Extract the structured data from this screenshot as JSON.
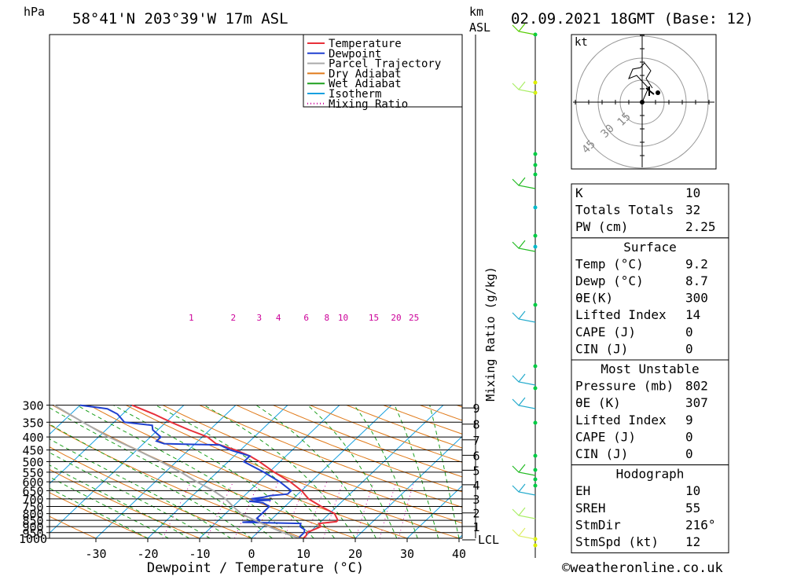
{
  "header": {
    "pressure_unit": "hPa",
    "location": "58°41'N  203°39'W  17m  ASL",
    "km_unit": "km",
    "asl_unit": "ASL",
    "datetime": "02.09.2021  18GMT  (Base: 12)"
  },
  "legend": [
    "Temperature",
    "Dewpoint",
    "Parcel Trajectory",
    "Dry Adiabat",
    "Wet Adiabat",
    "Isotherm",
    "Mixing Ratio"
  ],
  "mixing_ratio_label": "Mixing Ratio (g/kg)",
  "lcl_label": "LCL",
  "copyright": "©weatheronline.co.uk",
  "hodograph": {
    "unit": "kt",
    "rings": [
      "15",
      "30",
      "45"
    ]
  },
  "table1": [
    {
      "label": "K",
      "value": "10"
    },
    {
      "label": "Totals Totals",
      "value": "32"
    },
    {
      "label": "PW (cm)",
      "value": "2.25"
    }
  ],
  "surface": {
    "title": "Surface",
    "rows": [
      {
        "label": "Temp (°C)",
        "value": "9.2"
      },
      {
        "label": "Dewp (°C)",
        "value": "8.7"
      },
      {
        "label": "θE(K)",
        "value": "300"
      },
      {
        "label": "Lifted Index",
        "value": "14"
      },
      {
        "label": "CAPE (J)",
        "value": "0"
      },
      {
        "label": "CIN (J)",
        "value": "0"
      }
    ]
  },
  "most_unstable": {
    "title": "Most Unstable",
    "rows": [
      {
        "label": "Pressure (mb)",
        "value": "802"
      },
      {
        "label": "θE (K)",
        "value": "307"
      },
      {
        "label": "Lifted Index",
        "value": "9"
      },
      {
        "label": "CAPE (J)",
        "value": "0"
      },
      {
        "label": "CIN (J)",
        "value": "0"
      }
    ]
  },
  "hodograph_table": {
    "title": "Hodograph",
    "rows": [
      {
        "label": "EH",
        "value": "10"
      },
      {
        "label": "SREH",
        "value": "55"
      },
      {
        "label": "StmDir",
        "value": "216°"
      },
      {
        "label": "StmSpd (kt)",
        "value": "12"
      }
    ]
  },
  "colors": {
    "temperature": "#e8303a",
    "dewpoint": "#2040d0",
    "parcel": "#aaaaaa",
    "dry_adiabat": "#e07a1a",
    "wet_adiabat": "#1fa01f",
    "isotherm": "#18a0e0",
    "mixing_ratio": "#cc0099"
  },
  "chart_data": {
    "type": "line",
    "xlabel": "Dewpoint / Temperature (°C)",
    "ylabel": "hPa",
    "x_ticks": [
      -30,
      -20,
      -10,
      0,
      10,
      20,
      30,
      40
    ],
    "pressure_levels": [
      300,
      350,
      400,
      450,
      500,
      550,
      600,
      650,
      700,
      750,
      800,
      850,
      900,
      950,
      1000
    ],
    "km_ticks": [
      1,
      2,
      3,
      4,
      5,
      6,
      7,
      8,
      9
    ],
    "mixing_ratio_values": [
      1,
      2,
      3,
      4,
      6,
      8,
      10,
      15,
      20,
      25
    ],
    "series": [
      {
        "name": "Temperature",
        "points": [
          [
            1000,
            10
          ],
          [
            975,
            10
          ],
          [
            950,
            9.5
          ],
          [
            900,
            11
          ],
          [
            875,
            10
          ],
          [
            860,
            13
          ],
          [
            850,
            13
          ],
          [
            800,
            11
          ],
          [
            750,
            7
          ],
          [
            700,
            3
          ],
          [
            650,
            0
          ],
          [
            600,
            -4
          ],
          [
            550,
            -9
          ],
          [
            500,
            -14
          ],
          [
            475,
            -17
          ],
          [
            450,
            -21
          ],
          [
            425,
            -26
          ],
          [
            400,
            -29
          ],
          [
            375,
            -34
          ],
          [
            350,
            -39
          ],
          [
            325,
            -44
          ],
          [
            300,
            -50
          ]
        ]
      },
      {
        "name": "Dewpoint",
        "points": [
          [
            1000,
            9
          ],
          [
            975,
            9
          ],
          [
            950,
            9
          ],
          [
            925,
            8.5
          ],
          [
            900,
            7
          ],
          [
            875,
            6.5
          ],
          [
            865,
            -5
          ],
          [
            855,
            -2
          ],
          [
            850,
            -2
          ],
          [
            835,
            -3
          ],
          [
            800,
            -3
          ],
          [
            750,
            -3
          ],
          [
            725,
            -5
          ],
          [
            715,
            -8
          ],
          [
            708,
            -4
          ],
          [
            700,
            -8
          ],
          [
            690,
            -6
          ],
          [
            680,
            -5
          ],
          [
            670,
            -2
          ],
          [
            650,
            -2
          ],
          [
            600,
            -6
          ],
          [
            550,
            -11
          ],
          [
            500,
            -17
          ],
          [
            475,
            -17
          ],
          [
            450,
            -22
          ],
          [
            430,
            -25
          ],
          [
            425,
            -36
          ],
          [
            415,
            -38
          ],
          [
            400,
            -38
          ],
          [
            375,
            -41
          ],
          [
            360,
            -42
          ],
          [
            350,
            -48
          ],
          [
            325,
            -51
          ],
          [
            310,
            -54
          ],
          [
            300,
            -60
          ]
        ]
      },
      {
        "name": "Parcel Trajectory",
        "points": [
          [
            1000,
            9.2
          ],
          [
            950,
            5
          ],
          [
            900,
            1
          ],
          [
            850,
            -3
          ],
          [
            800,
            -7
          ],
          [
            750,
            -10
          ],
          [
            700,
            -13
          ],
          [
            650,
            -17
          ],
          [
            600,
            -22
          ],
          [
            550,
            -27
          ],
          [
            500,
            -33
          ],
          [
            450,
            -40
          ],
          [
            400,
            -48
          ],
          [
            350,
            -56
          ],
          [
            300,
            -65
          ]
        ]
      }
    ],
    "wind_profile_km": [
      0,
      0.5,
      1,
      1.5,
      2,
      2.5,
      3,
      3.5,
      4,
      4.5,
      5,
      5.5,
      6,
      6.5,
      7,
      7.5,
      8,
      8.5,
      9
    ]
  }
}
